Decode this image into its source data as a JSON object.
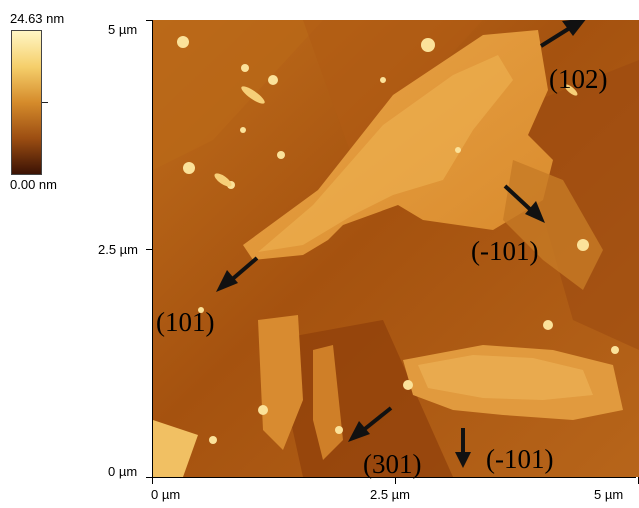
{
  "colorbar": {
    "max_label": "24.63 nm",
    "min_label": "0.00 nm",
    "colors": [
      "#fff3b8",
      "#f2c45a",
      "#c9781e",
      "#8a3e0b",
      "#3b1204"
    ]
  },
  "axes": {
    "y_labels": [
      "5 µm",
      "2.5 µm",
      "0 µm"
    ],
    "x_labels": [
      "0 µm",
      "2.5 µm",
      "5 µm"
    ]
  },
  "annotations": {
    "a102": "(102)",
    "am101_upper": "(-101)",
    "a101": "(101)",
    "a301": "(301)",
    "am101_lower": "(-101)"
  }
}
